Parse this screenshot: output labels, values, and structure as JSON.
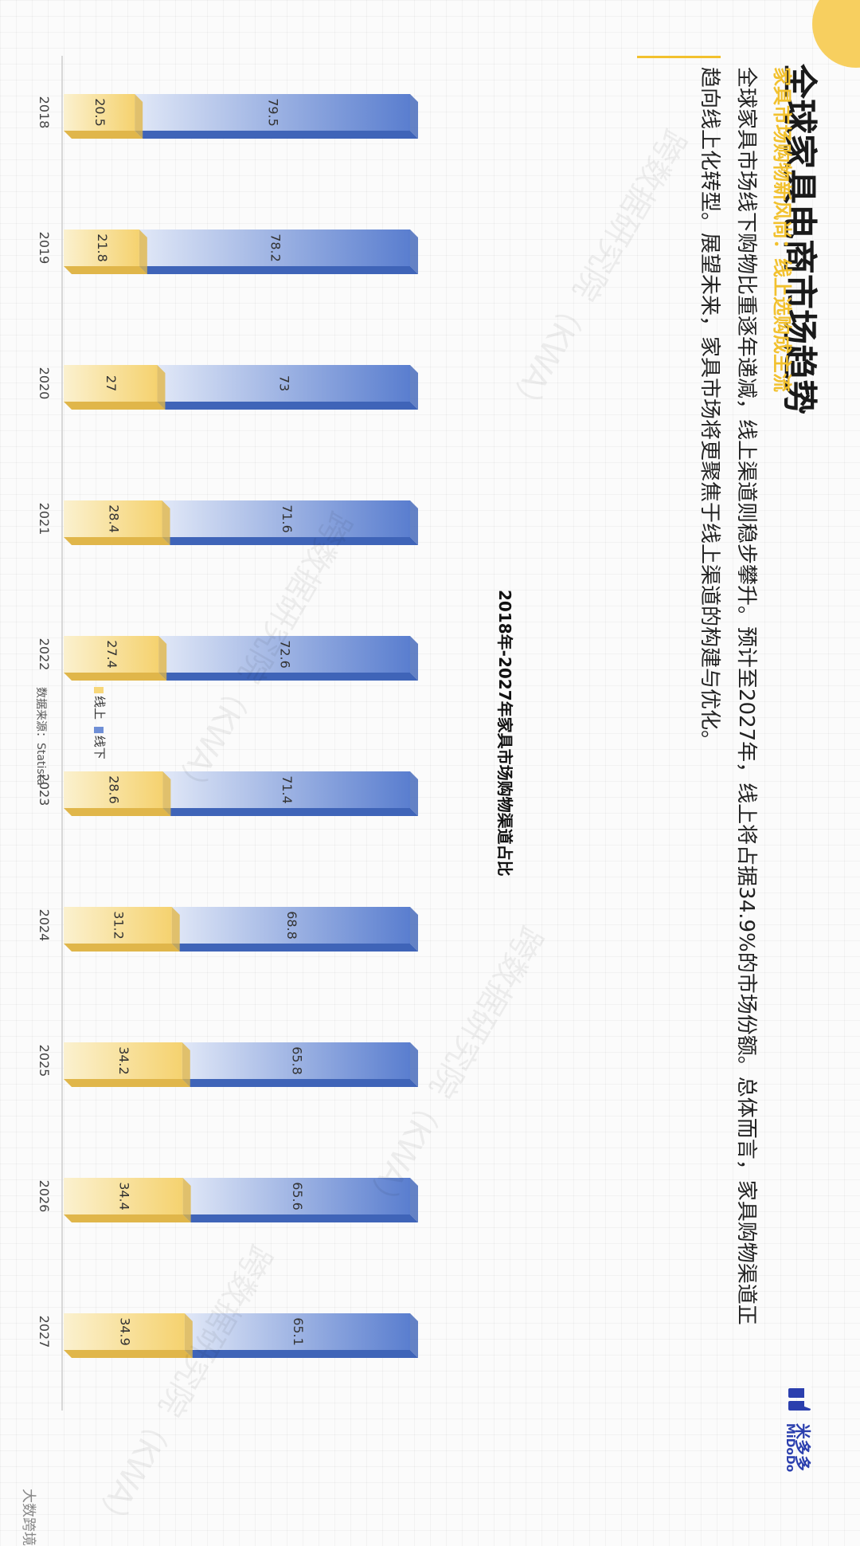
{
  "page": {
    "title": "全球家具电商市场趋势",
    "subtitle": "家具市场购物新风尚：线上选购成主流",
    "paragraph": "全球家具市场线下购物比重逐年递减，线上渠道则稳步攀升。预计至2027年，线上将占据34.9%的市场份额。总体而言，家具购物渠道正趋向线上化转型。展望未来，家具市场将更聚焦于线上渠道的构建与优化。",
    "logo_cn": "米多多",
    "logo_en": "MiDoDo",
    "source": "数据来源：Statista",
    "footer": "大数跨境",
    "watermark": "跨数据研究院（KWA）"
  },
  "colors": {
    "online": "#f7d77a",
    "offline": "#6f8fd6",
    "accent": "#f2c12e",
    "brand": "#2b3fae"
  },
  "chart_data": {
    "type": "bar",
    "title": "2018年-2027年家具市场购物渠道占比",
    "categories": [
      "2018",
      "2019",
      "2020",
      "2021",
      "2022",
      "2023",
      "2024",
      "2025",
      "2026",
      "2027"
    ],
    "series": [
      {
        "name": "线上",
        "values": [
          20.5,
          21.8,
          27,
          28.4,
          27.4,
          28.6,
          31.2,
          34.2,
          34.4,
          34.9
        ]
      },
      {
        "name": "线下",
        "values": [
          79.5,
          78.2,
          73,
          71.6,
          72.6,
          71.4,
          68.8,
          65.8,
          65.6,
          65.1
        ]
      }
    ],
    "stacked": true,
    "ylim": [
      0,
      100
    ],
    "legend": "bottom-left"
  }
}
